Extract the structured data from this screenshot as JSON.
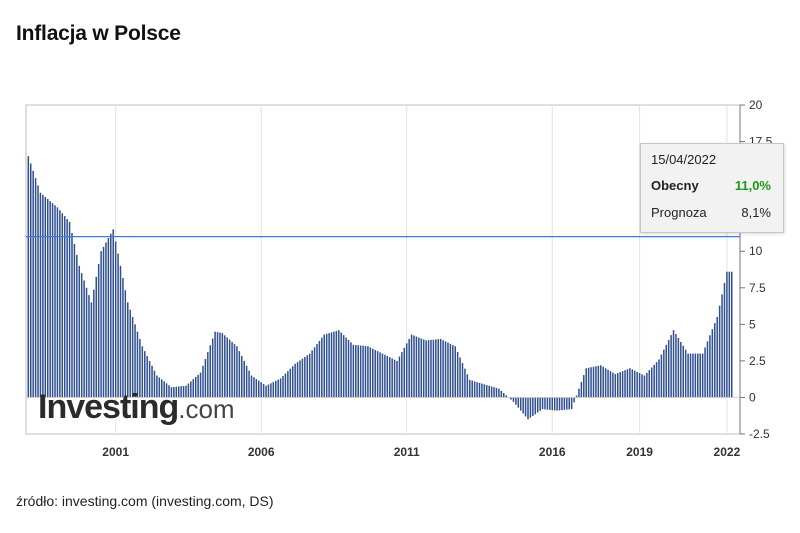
{
  "title": "Inflacja w Polsce",
  "source": "źródło: investing.com (investing.com, DS)",
  "logo": {
    "main": "Investing",
    "domain": ".com"
  },
  "tooltip": {
    "date": "15/04/2022",
    "current_label": "Obecny",
    "current_value": "11,0%",
    "forecast_label": "Prognoza",
    "forecast_value": "8,1%"
  },
  "colors": {
    "bars": "#2f4f8f",
    "line": "#3a7bd5",
    "tooltip_value": "#1a9a1a",
    "axis": "#555555"
  },
  "chart_data": {
    "type": "bar",
    "y_ticks": [
      "20",
      "17.5",
      "10",
      "7.5",
      "5",
      "2.5",
      "0",
      "-2.5"
    ],
    "x_ticks": [
      "2001",
      "2006",
      "2011",
      "2016",
      "2019",
      "2022"
    ],
    "ylim": [
      -2.5,
      20
    ],
    "reference_line": 11.0,
    "grid": true,
    "x": [
      "1998-01",
      "1998-06",
      "1999-01",
      "1999-06",
      "1999-10",
      "2000-03",
      "2000-07",
      "2000-12",
      "2001-06",
      "2001-12",
      "2002-06",
      "2002-12",
      "2003-06",
      "2003-12",
      "2004-06",
      "2004-09",
      "2005-03",
      "2005-09",
      "2006-03",
      "2006-09",
      "2007-03",
      "2007-09",
      "2008-03",
      "2008-09",
      "2009-03",
      "2009-09",
      "2010-03",
      "2010-09",
      "2011-03",
      "2011-09",
      "2012-03",
      "2012-09",
      "2013-03",
      "2013-09",
      "2014-03",
      "2014-09",
      "2015-03",
      "2015-09",
      "2016-03",
      "2016-09",
      "2017-03",
      "2017-09",
      "2018-03",
      "2018-09",
      "2019-03",
      "2019-09",
      "2020-03",
      "2020-09",
      "2021-03",
      "2021-09",
      "2022-01",
      "2022-03"
    ],
    "values": [
      16.5,
      14.0,
      13.0,
      12.0,
      9.0,
      6.5,
      10.0,
      11.5,
      6.5,
      3.5,
      1.5,
      0.7,
      0.8,
      1.7,
      4.5,
      4.4,
      3.5,
      1.5,
      0.8,
      1.3,
      2.3,
      3.0,
      4.3,
      4.6,
      3.6,
      3.5,
      3.0,
      2.5,
      4.3,
      3.9,
      4.0,
      3.5,
      1.2,
      0.9,
      0.6,
      -0.3,
      -1.5,
      -0.8,
      -0.9,
      -0.8,
      2.0,
      2.2,
      1.6,
      2.0,
      1.5,
      2.6,
      4.6,
      3.0,
      3.0,
      5.5,
      8.6,
      8.6
    ]
  }
}
